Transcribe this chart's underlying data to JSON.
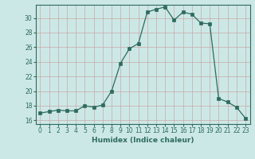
{
  "x": [
    0,
    1,
    2,
    3,
    4,
    5,
    6,
    7,
    8,
    9,
    10,
    11,
    12,
    13,
    14,
    15,
    16,
    17,
    18,
    19,
    20,
    21,
    22,
    23
  ],
  "y": [
    17,
    17.2,
    17.4,
    17.3,
    17.3,
    18,
    17.8,
    18.1,
    20,
    23.8,
    25.8,
    26.5,
    30.8,
    31.2,
    31.5,
    29.7,
    30.8,
    30.5,
    29.3,
    29.2,
    19.0,
    18.5,
    17.8,
    16.3
  ],
  "line_color": "#2d6b5e",
  "marker": "s",
  "marker_size": 2.2,
  "bg_color": "#cce8e6",
  "grid_color_major": "#c8a8a8",
  "grid_color_minor": "#c8a8a8",
  "xlabel": "Humidex (Indice chaleur)",
  "xlim": [
    -0.5,
    23.5
  ],
  "ylim": [
    15.5,
    31.8
  ],
  "yticks": [
    16,
    18,
    20,
    22,
    24,
    26,
    28,
    30
  ],
  "xticks": [
    0,
    1,
    2,
    3,
    4,
    5,
    6,
    7,
    8,
    9,
    10,
    11,
    12,
    13,
    14,
    15,
    16,
    17,
    18,
    19,
    20,
    21,
    22,
    23
  ],
  "label_color": "#2d6b5e",
  "tick_color": "#2d6b5e",
  "font_size_label": 6.5,
  "font_size_tick": 5.5
}
